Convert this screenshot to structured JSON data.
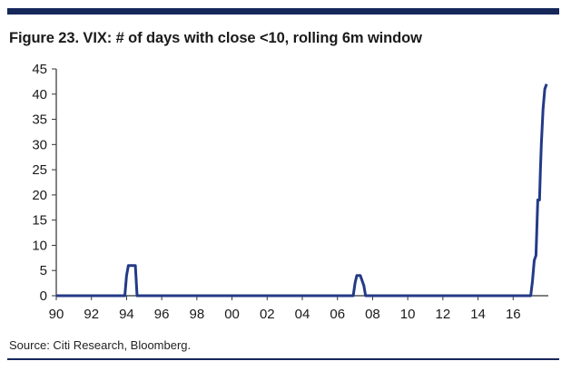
{
  "header": {
    "title": "Figure 23. VIX: # of days with close <10, rolling 6m window"
  },
  "footer": {
    "source": "Source: Citi Research, Bloomberg."
  },
  "colors": {
    "line": "#233a86",
    "rule": "#16275a",
    "axis": "#333333"
  },
  "chart_data": {
    "type": "line",
    "title": "Figure 23. VIX: # of days with close <10, rolling 6m window",
    "xlabel": "",
    "ylabel": "",
    "xlim": [
      1990,
      2018
    ],
    "ylim": [
      0,
      45
    ],
    "x_ticks": [
      1990,
      1992,
      1994,
      1996,
      1998,
      2000,
      2002,
      2004,
      2006,
      2008,
      2010,
      2012,
      2014,
      2016
    ],
    "x_tick_labels": [
      "90",
      "92",
      "94",
      "96",
      "98",
      "00",
      "02",
      "04",
      "06",
      "08",
      "10",
      "12",
      "14",
      "16"
    ],
    "y_ticks": [
      0,
      5,
      10,
      15,
      20,
      25,
      30,
      35,
      40,
      45
    ],
    "y_tick_labels": [
      "0",
      "5",
      "10",
      "15",
      "20",
      "25",
      "30",
      "35",
      "40",
      "45"
    ],
    "grid": false,
    "series": [
      {
        "x": [
          1990.0,
          1993.9,
          1994.0,
          1994.1,
          1994.2,
          1994.3,
          1994.5,
          1994.6,
          2006.9,
          2007.0,
          2007.1,
          2007.3,
          2007.5,
          2007.6,
          2017.0,
          2017.1,
          2017.2,
          2017.3,
          2017.4,
          2017.5,
          2017.55,
          2017.6,
          2017.7,
          2017.8,
          2017.9
        ],
        "y": [
          0,
          0,
          4,
          6,
          6,
          6,
          6,
          0,
          0,
          2.5,
          4,
          4,
          2,
          0,
          0,
          3,
          7,
          8,
          19,
          19,
          25,
          30,
          37,
          41,
          42
        ]
      }
    ]
  }
}
